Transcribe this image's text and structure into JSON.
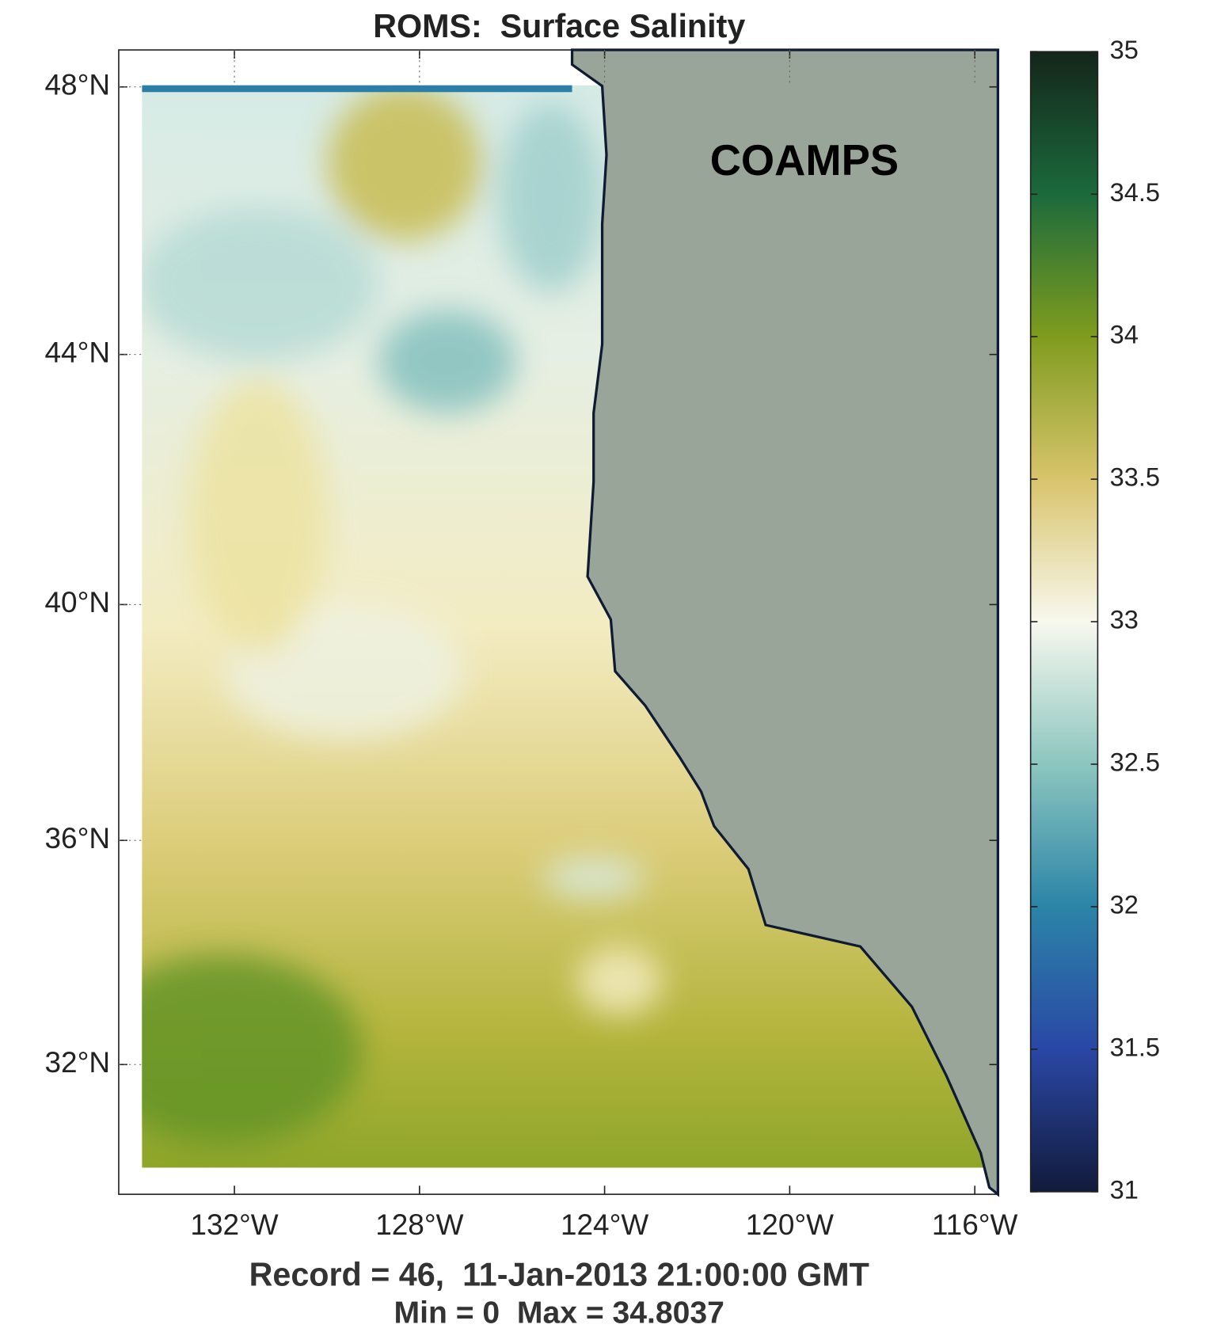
{
  "chart_data": {
    "type": "map",
    "title": "ROMS:  Surface Salinity",
    "projection": "mercator",
    "xlim": [
      -134.5,
      -115.5
    ],
    "ylim": [
      29.6,
      48.53
    ],
    "xticks": [
      {
        "value": -132,
        "label": "132°W"
      },
      {
        "value": -128,
        "label": "128°W"
      },
      {
        "value": -124,
        "label": "124°W"
      },
      {
        "value": -120,
        "label": "120°W"
      },
      {
        "value": -116,
        "label": "116°W"
      }
    ],
    "yticks": [
      {
        "value": 48,
        "label": "48°N"
      },
      {
        "value": 44,
        "label": "44°N"
      },
      {
        "value": 40,
        "label": "40°N"
      },
      {
        "value": 36,
        "label": "36°N"
      },
      {
        "value": 32,
        "label": "32°N"
      }
    ],
    "annotation": "COAMPS",
    "footer": [
      "Record = 46,  11-Jan-2013 21:00:00 GMT",
      "Min = 0  Max = 34.8037"
    ],
    "land_color": "#9aa59a",
    "colorbar": {
      "clim": [
        31,
        35
      ],
      "ticks": [
        31,
        31.5,
        32,
        32.5,
        33,
        33.5,
        34,
        34.5,
        35
      ],
      "colormap": [
        "#121b3b",
        "#2a47a6",
        "#2b84a7",
        "#8cc6bf",
        "#f8f8ee",
        "#d8c46c",
        "#7f9c1e",
        "#1b6a3c",
        "#14251a"
      ]
    }
  }
}
